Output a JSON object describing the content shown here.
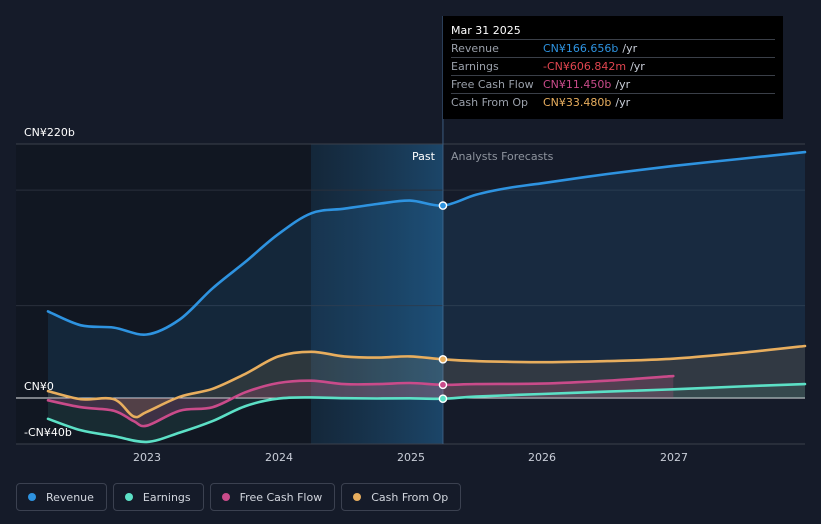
{
  "chart_data": {
    "type": "line",
    "title": "",
    "y_axis": {
      "top_label": "CN¥220b",
      "zero_label": "CN¥0",
      "bottom_label": "-CN¥40b",
      "ylim": [
        -40,
        220
      ]
    },
    "x_tick_labels": [
      "2023",
      "2024",
      "2025",
      "2026",
      "2027"
    ],
    "segments": {
      "past_label": "Past",
      "forecast_label": "Analysts Forecasts",
      "divider_date": 2025.25
    },
    "series": [
      {
        "name": "Revenue",
        "color": "#2e93e0",
        "x": [
          2022.25,
          2022.5,
          2022.75,
          2023.0,
          2023.25,
          2023.5,
          2023.75,
          2024.0,
          2024.25,
          2024.5,
          2024.75,
          2025.0,
          2025.25,
          2025.5,
          2025.75,
          2026.0,
          2026.5,
          2027.0,
          2027.5,
          2028.0
        ],
        "y": [
          75,
          63,
          61,
          55,
          68,
          95,
          118,
          142,
          160,
          164,
          168,
          171,
          166.656,
          176,
          182,
          186,
          194,
          201,
          207,
          213
        ]
      },
      {
        "name": "Earnings",
        "color": "#5ce0c6",
        "x": [
          2022.25,
          2022.5,
          2022.75,
          2023.0,
          2023.25,
          2023.5,
          2023.75,
          2024.0,
          2024.25,
          2024.5,
          2024.75,
          2025.0,
          2025.25,
          2025.5,
          2026.0,
          2026.5,
          2027.0,
          2027.5,
          2028.0
        ],
        "y": [
          -18,
          -28,
          -33,
          -38,
          -30,
          -20,
          -7,
          -0.5,
          0.5,
          -0.2,
          -0.4,
          -0.3,
          -0.607,
          1.2,
          3.5,
          5.5,
          7.5,
          10,
          12
        ]
      },
      {
        "name": "Free Cash Flow",
        "color": "#c94b8a",
        "x": [
          2022.25,
          2022.5,
          2022.75,
          2022.9,
          2023.0,
          2023.25,
          2023.5,
          2023.75,
          2024.0,
          2024.25,
          2024.5,
          2024.75,
          2025.0,
          2025.25,
          2025.5,
          2026.0,
          2026.5,
          2027.0
        ],
        "y": [
          -2,
          -8,
          -11,
          -20,
          -24,
          -11,
          -8,
          5,
          13,
          15,
          12,
          12,
          13,
          11.45,
          12,
          12.5,
          15,
          19
        ]
      },
      {
        "name": "Cash From Op",
        "color": "#e8ae5e",
        "x": [
          2022.25,
          2022.5,
          2022.75,
          2022.9,
          2023.0,
          2023.25,
          2023.5,
          2023.75,
          2024.0,
          2024.25,
          2024.5,
          2024.75,
          2025.0,
          2025.25,
          2025.5,
          2026.0,
          2026.5,
          2027.0,
          2027.5,
          2028.0
        ],
        "y": [
          6,
          -1,
          -1,
          -16,
          -12,
          1,
          8,
          21,
          36,
          40,
          36,
          35,
          36,
          33.48,
          32,
          31,
          32,
          34,
          39,
          45
        ]
      }
    ],
    "highlight_x": 2025.25
  },
  "tooltip": {
    "date": "Mar 31 2025",
    "rows": [
      {
        "label": "Revenue",
        "value": "CN¥166.656b",
        "unit": "/yr",
        "color": "#2e93e0"
      },
      {
        "label": "Earnings",
        "value": "-CN¥606.842m",
        "unit": "/yr",
        "color": "#e0454f"
      },
      {
        "label": "Free Cash Flow",
        "value": "CN¥11.450b",
        "unit": "/yr",
        "color": "#c94b8a"
      },
      {
        "label": "Cash From Op",
        "value": "CN¥33.480b",
        "unit": "/yr",
        "color": "#e8ae5e"
      }
    ]
  },
  "legend": [
    {
      "label": "Revenue",
      "color": "#2e93e0"
    },
    {
      "label": "Earnings",
      "color": "#5ce0c6"
    },
    {
      "label": "Free Cash Flow",
      "color": "#c94b8a"
    },
    {
      "label": "Cash From Op",
      "color": "#e8ae5e"
    }
  ]
}
